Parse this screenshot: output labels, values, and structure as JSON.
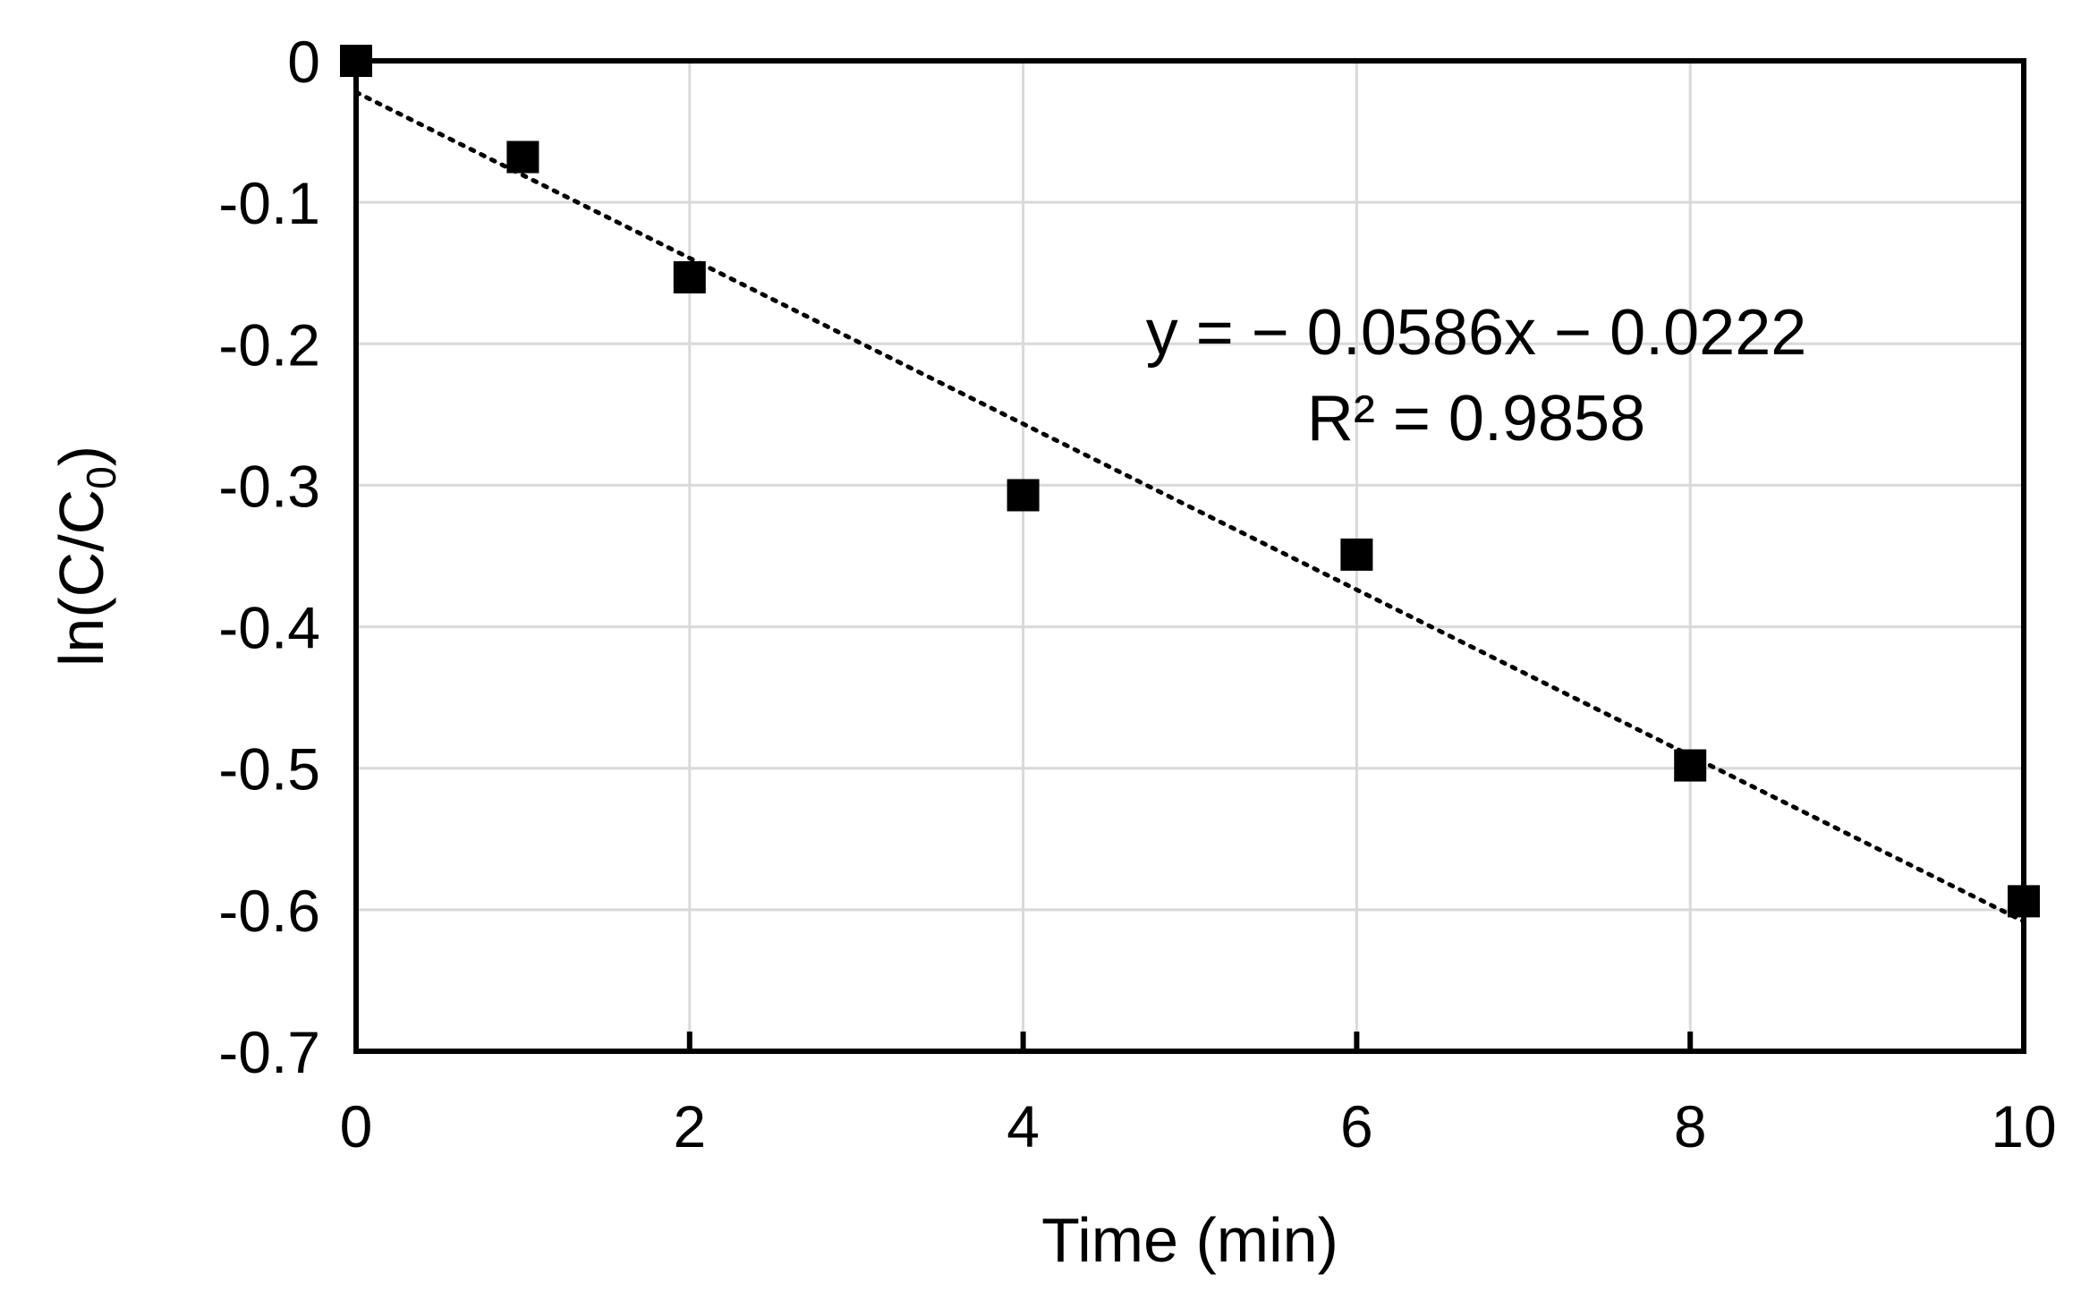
{
  "chart_data": {
    "type": "scatter",
    "title": "",
    "xlabel": "Time (min)",
    "ylabel_main": "ln(C/C",
    "ylabel_sub": "0",
    "ylabel_close": ")",
    "xlim": [
      0,
      10
    ],
    "ylim": [
      -0.7,
      0
    ],
    "x_ticks": [
      0,
      2,
      4,
      6,
      8,
      10
    ],
    "x_tick_labels": [
      "0",
      "2",
      "4",
      "6",
      "8",
      "10"
    ],
    "y_ticks": [
      0,
      -0.1,
      -0.2,
      -0.3,
      -0.4,
      -0.5,
      -0.6,
      -0.7
    ],
    "y_tick_labels": [
      "0",
      "-0.1",
      "-0.2",
      "-0.3",
      "-0.4",
      "-0.5",
      "-0.6",
      "-0.7"
    ],
    "grid": true,
    "series": [
      {
        "x": [
          0,
          1,
          2,
          4,
          6,
          8,
          10
        ],
        "y": [
          0,
          -0.068,
          -0.153,
          -0.307,
          -0.349,
          -0.498,
          -0.594
        ],
        "marker": "square",
        "color": "#000000"
      }
    ],
    "trendline": {
      "slope": -0.0586,
      "intercept": -0.0222,
      "style": "dotted",
      "color": "#000000"
    },
    "annotations": {
      "equation": "y = − 0.0586x − 0.0222",
      "r_squared": "R² = 0.9858"
    }
  }
}
